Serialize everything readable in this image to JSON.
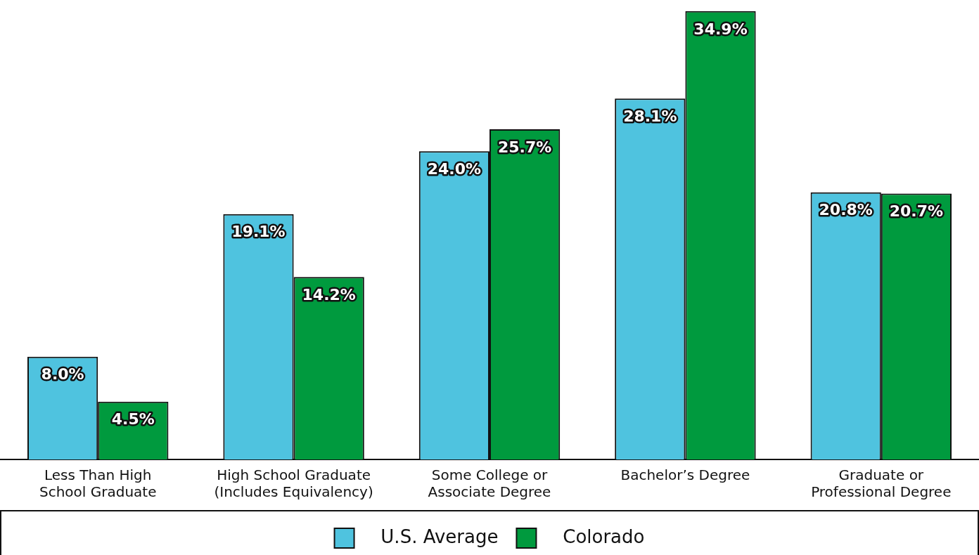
{
  "chart_data": {
    "type": "bar",
    "categories": [
      "Less Than High School Graduate",
      "High School Graduate (Includes Equivalency)",
      "Some College or Associate Degree",
      "Bachelor’s Degree",
      "Graduate or Professional Degree"
    ],
    "series": [
      {
        "name": "U.S. Average",
        "color": "#4fc3df",
        "values": [
          8.0,
          19.1,
          24.0,
          28.1,
          20.8
        ],
        "value_labels": [
          "8.0%",
          "19.1%",
          "24.0%",
          "28.1%",
          "20.8%"
        ]
      },
      {
        "name": "Colorado",
        "color": "#009a3e",
        "values": [
          4.5,
          14.2,
          25.7,
          34.9,
          20.7
        ],
        "value_labels": [
          "4.5%",
          "14.2%",
          "25.7%",
          "34.9%",
          "20.7%"
        ]
      }
    ],
    "legend": "bottom",
    "grid": false
  }
}
